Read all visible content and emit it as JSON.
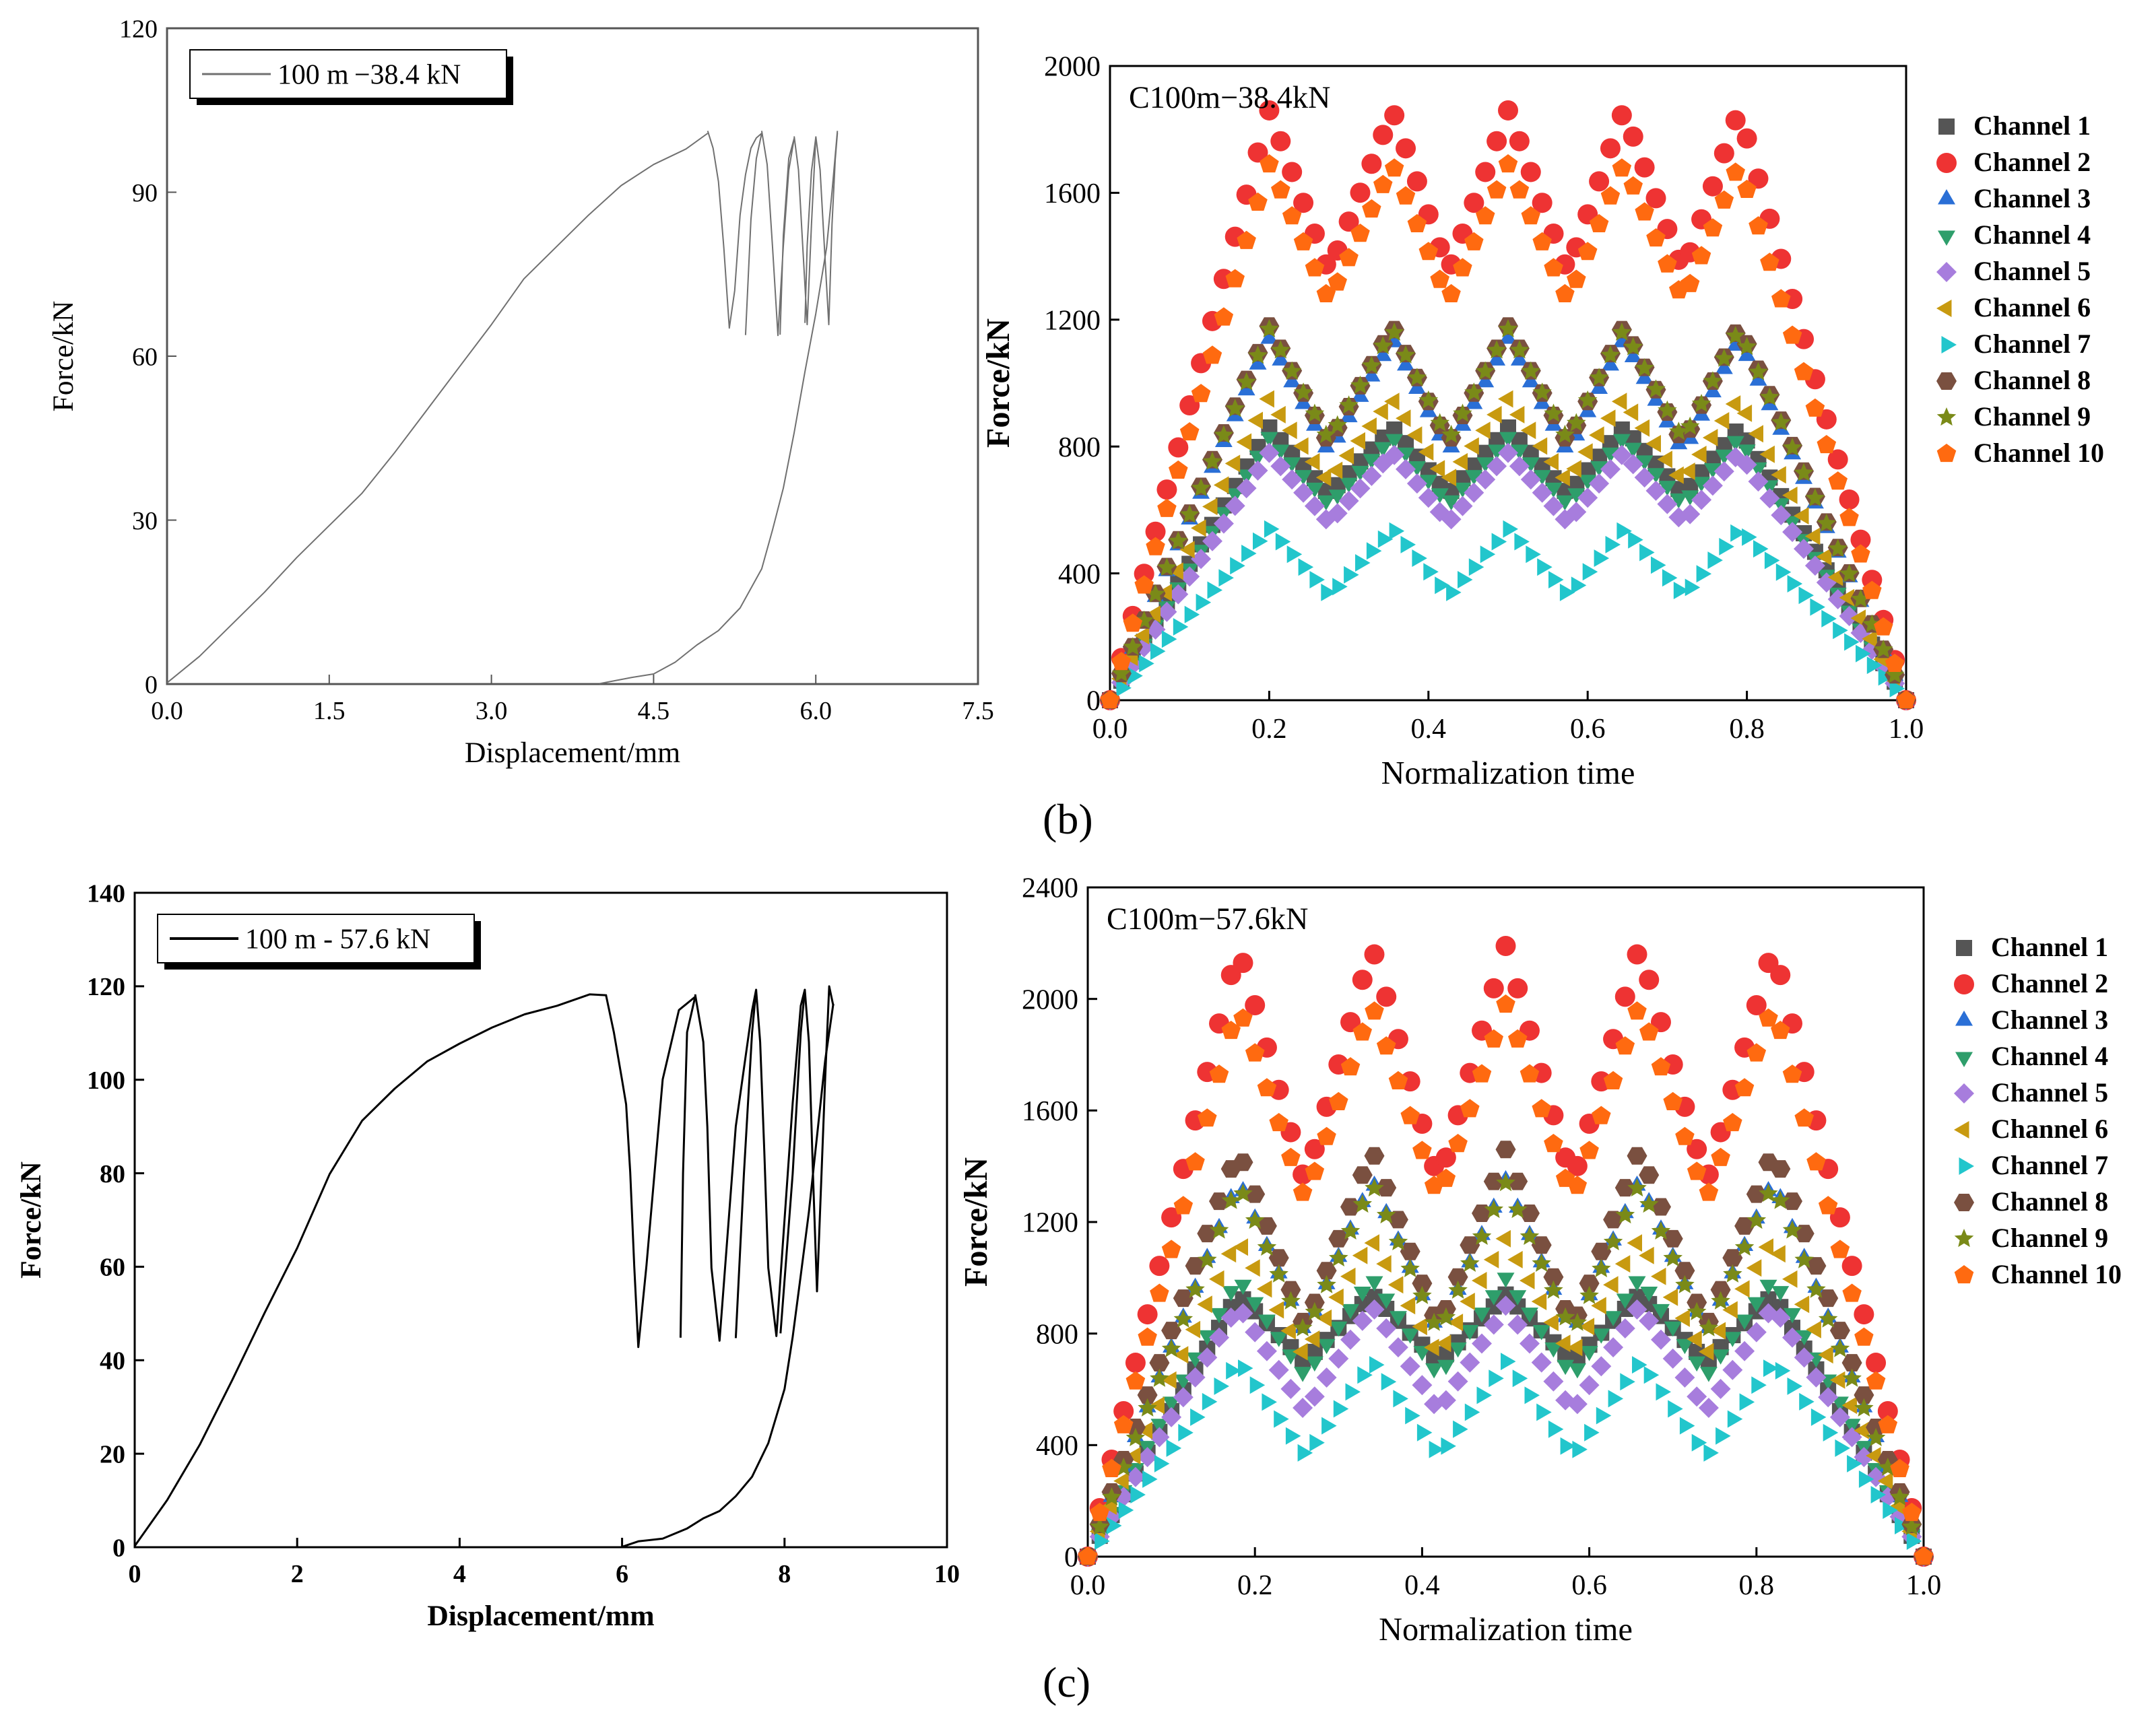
{
  "panel_labels": [
    "(b)",
    "(c)"
  ],
  "colors": {
    "ch1": "#555555",
    "ch2": "#ee3333",
    "ch3": "#2a6fd6",
    "ch4": "#2e9e6b",
    "ch5": "#a77ddd",
    "ch6": "#c89a10",
    "ch7": "#22c6cc",
    "ch8": "#7a5040",
    "ch9": "#7a8a18",
    "ch10": "#ff6a10",
    "hyst_top": "#707070",
    "hyst_bottom": "#000000"
  },
  "chart_data": [
    {
      "id": "top-left",
      "type": "line",
      "xlabel": "Displacement/mm",
      "ylabel": "Force/kN",
      "xlim": [
        0,
        7.5
      ],
      "ylim": [
        0,
        120
      ],
      "xticks": [
        "0.0",
        "1.5",
        "3.0",
        "4.5",
        "6.0",
        "7.5"
      ],
      "yticks": [
        "0",
        "30",
        "60",
        "90",
        "120"
      ],
      "legend": [
        "100 m −38.4 kN"
      ],
      "legend_position": "top-left",
      "series": [
        {
          "name": "load",
          "x": [
            0,
            0.3,
            0.6,
            0.9,
            1.2,
            1.5,
            1.8,
            2.1,
            2.4,
            2.7,
            3.0,
            3.3,
            3.6,
            3.9,
            4.2,
            4.5,
            4.8,
            5.0
          ],
          "y": [
            0,
            5,
            11,
            17,
            23,
            29,
            35,
            42,
            50,
            58,
            66,
            74,
            80,
            86,
            91,
            95,
            98,
            101
          ]
        },
        {
          "name": "cycle1",
          "x": [
            5.0,
            5.05,
            5.1,
            5.15,
            5.2,
            5.25,
            5.3,
            5.35,
            5.4,
            5.45,
            5.5,
            5.45,
            5.4,
            5.35
          ],
          "y": [
            101,
            98,
            92,
            80,
            65,
            72,
            86,
            93,
            98,
            100,
            101,
            96,
            85,
            64
          ]
        },
        {
          "name": "cycle2",
          "x": [
            5.5,
            5.55,
            5.6,
            5.65,
            5.7,
            5.75,
            5.8,
            5.75,
            5.7,
            5.67
          ],
          "y": [
            101,
            95,
            80,
            64,
            80,
            94,
            100,
            96,
            82,
            64
          ]
        },
        {
          "name": "cycle3",
          "x": [
            5.8,
            5.84,
            5.88,
            5.92,
            5.96,
            6.0,
            5.96,
            5.92,
            5.9
          ],
          "y": [
            100,
            94,
            80,
            66,
            84,
            100,
            94,
            80,
            66
          ]
        },
        {
          "name": "cycle4",
          "x": [
            6.0,
            6.04,
            6.08,
            6.12,
            6.15,
            6.18,
            6.2
          ],
          "y": [
            100,
            94,
            80,
            66,
            84,
            96,
            101
          ]
        },
        {
          "name": "unload",
          "x": [
            6.2,
            6.15,
            6.1,
            6.0,
            5.9,
            5.8,
            5.7,
            5.6,
            5.5,
            5.3,
            5.1,
            4.9,
            4.7,
            4.5,
            4.3,
            4.0
          ],
          "y": [
            101,
            90,
            80,
            68,
            57,
            46,
            36,
            28,
            21,
            14,
            10,
            7,
            4,
            2,
            1,
            0
          ]
        }
      ]
    },
    {
      "id": "top-right",
      "type": "scatter",
      "title": "C100m−38.4kN",
      "xlabel": "Normalization time",
      "ylabel": "Force/kN",
      "xlim": [
        0,
        1.0
      ],
      "ylim": [
        0,
        2000
      ],
      "xticks": [
        "0.0",
        "0.2",
        "0.4",
        "0.6",
        "0.8",
        "1.0"
      ],
      "yticks": [
        "0",
        "400",
        "800",
        "1200",
        "1600",
        "2000"
      ],
      "legend_position": "right",
      "peak_times": [
        0.2,
        0.355,
        0.5,
        0.645,
        0.79
      ],
      "trough_times": [
        0.275,
        0.425,
        0.575,
        0.72
      ],
      "series": [
        {
          "name": "Channel 1",
          "marker": "square",
          "color_key": "ch1",
          "peak": 860,
          "trough": 650
        },
        {
          "name": "Channel 2",
          "marker": "circle",
          "color_key": "ch2",
          "peak": 1860,
          "trough": 1350
        },
        {
          "name": "Channel 3",
          "marker": "triangle-up",
          "color_key": "ch3",
          "peak": 1140,
          "trough": 780
        },
        {
          "name": "Channel 4",
          "marker": "triangle-down",
          "color_key": "ch4",
          "peak": 830,
          "trough": 620
        },
        {
          "name": "Channel 5",
          "marker": "diamond",
          "color_key": "ch5",
          "peak": 780,
          "trough": 560
        },
        {
          "name": "Channel 6",
          "marker": "triangle-left",
          "color_key": "ch6",
          "peak": 950,
          "trough": 690
        },
        {
          "name": "Channel 7",
          "marker": "triangle-right",
          "color_key": "ch7",
          "peak": 540,
          "trough": 330
        },
        {
          "name": "Channel 8",
          "marker": "hexagon",
          "color_key": "ch8",
          "peak": 1180,
          "trough": 810
        },
        {
          "name": "Channel 9",
          "marker": "star",
          "color_key": "ch9",
          "peak": 1170,
          "trough": 820
        },
        {
          "name": "Channel 10",
          "marker": "pentagon",
          "color_key": "ch10",
          "peak": 1690,
          "trough": 1260
        }
      ]
    },
    {
      "id": "bottom-left",
      "type": "line",
      "xlabel": "Displacement/mm",
      "ylabel": "Force/kN",
      "xlim": [
        0,
        10
      ],
      "ylim": [
        0,
        140
      ],
      "xticks": [
        "0",
        "2",
        "4",
        "6",
        "8",
        "10"
      ],
      "yticks": [
        "0",
        "20",
        "40",
        "60",
        "80",
        "100",
        "120",
        "140"
      ],
      "legend": [
        "100 m - 57.6 kN"
      ],
      "legend_position": "top-left",
      "series": [
        {
          "name": "load",
          "x": [
            0,
            0.4,
            0.8,
            1.2,
            1.6,
            2.0,
            2.4,
            2.8,
            3.2,
            3.6,
            4.0,
            4.4,
            4.8,
            5.2,
            5.6,
            5.8
          ],
          "y": [
            0,
            10,
            22,
            36,
            50,
            64,
            80,
            91,
            98,
            104,
            108,
            111,
            114,
            116,
            118,
            118
          ]
        },
        {
          "name": "cycle1",
          "x": [
            5.8,
            5.9,
            6.0,
            6.05,
            6.1,
            6.15,
            6.2,
            6.3,
            6.5,
            6.7,
            6.9,
            6.8,
            6.75,
            6.72
          ],
          "y": [
            118,
            110,
            100,
            95,
            80,
            60,
            43,
            60,
            100,
            115,
            118,
            110,
            80,
            45
          ]
        },
        {
          "name": "cycle2",
          "x": [
            6.9,
            7.0,
            7.05,
            7.1,
            7.2,
            7.4,
            7.6,
            7.65,
            7.6,
            7.5,
            7.4
          ],
          "y": [
            118,
            108,
            90,
            60,
            44,
            90,
            115,
            119,
            110,
            80,
            45
          ]
        },
        {
          "name": "cycle3",
          "x": [
            7.65,
            7.7,
            7.75,
            7.8,
            7.9,
            8.1,
            8.2,
            8.25,
            8.2,
            8.1,
            7.95
          ],
          "y": [
            119,
            108,
            85,
            60,
            45,
            95,
            116,
            119,
            110,
            80,
            46
          ]
        },
        {
          "name": "cycle4",
          "x": [
            8.25,
            8.3,
            8.35,
            8.4,
            8.5,
            8.55,
            8.6
          ],
          "y": [
            119,
            108,
            80,
            55,
            100,
            120,
            116
          ]
        },
        {
          "name": "unload",
          "x": [
            8.6,
            8.5,
            8.4,
            8.3,
            8.2,
            8.1,
            8.0,
            7.8,
            7.6,
            7.4,
            7.2,
            7.0,
            6.8,
            6.5,
            6.2,
            6.0
          ],
          "y": [
            116,
            104,
            88,
            72,
            58,
            45,
            34,
            22,
            15,
            11,
            8,
            6,
            4,
            2,
            1,
            0
          ]
        }
      ]
    },
    {
      "id": "bottom-right",
      "type": "scatter",
      "title": "C100m−57.6kN",
      "xlabel": "Normalization time",
      "ylabel": "Force/kN",
      "xlim": [
        0,
        1.0
      ],
      "ylim": [
        0,
        2400
      ],
      "xticks": [
        "0.0",
        "0.2",
        "0.4",
        "0.6",
        "0.8",
        "1.0"
      ],
      "yticks": [
        "0",
        "400",
        "800",
        "1200",
        "1600",
        "2000",
        "2400"
      ],
      "legend_position": "right",
      "peak_times": [
        0.18,
        0.34,
        0.5,
        0.66,
        0.82
      ],
      "trough_times": [
        0.26,
        0.42,
        0.58,
        0.74
      ],
      "series": [
        {
          "name": "Channel 1",
          "marker": "square",
          "color_key": "ch1",
          "peak": 940,
          "trough": 700
        },
        {
          "name": "Channel 2",
          "marker": "circle",
          "color_key": "ch2",
          "peak": 2190,
          "trough": 1340
        },
        {
          "name": "Channel 3",
          "marker": "triangle-up",
          "color_key": "ch3",
          "peak": 1350,
          "trough": 800
        },
        {
          "name": "Channel 4",
          "marker": "triangle-down",
          "color_key": "ch4",
          "peak": 1000,
          "trough": 650
        },
        {
          "name": "Channel 5",
          "marker": "diamond",
          "color_key": "ch5",
          "peak": 900,
          "trough": 520
        },
        {
          "name": "Channel 6",
          "marker": "triangle-left",
          "color_key": "ch6",
          "peak": 1140,
          "trough": 720
        },
        {
          "name": "Channel 7",
          "marker": "triangle-right",
          "color_key": "ch7",
          "peak": 700,
          "trough": 360
        },
        {
          "name": "Channel 8",
          "marker": "hexagon",
          "color_key": "ch8",
          "peak": 1460,
          "trough": 820
        },
        {
          "name": "Channel 9",
          "marker": "star",
          "color_key": "ch9",
          "peak": 1340,
          "trough": 800
        },
        {
          "name": "Channel 10",
          "marker": "pentagon",
          "color_key": "ch10",
          "peak": 1980,
          "trough": 1280
        }
      ]
    }
  ]
}
